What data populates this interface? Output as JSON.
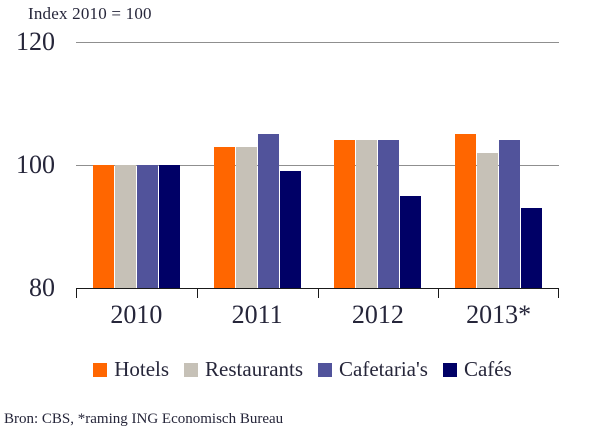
{
  "chart_data": {
    "type": "bar",
    "title": "Index 2010 = 100",
    "categories": [
      "2010",
      "2011",
      "2012",
      "2013*"
    ],
    "series": [
      {
        "name": "Hotels",
        "color": "#FF6600",
        "values": [
          100,
          103,
          104,
          105
        ]
      },
      {
        "name": "Restaurants",
        "color": "#C6C1B7",
        "values": [
          100,
          103,
          104,
          102
        ]
      },
      {
        "name": "Cafetaria's",
        "color": "#51539B",
        "values": [
          100,
          105,
          104,
          104
        ]
      },
      {
        "name": "Cafés",
        "color": "#000066",
        "values": [
          100,
          99,
          95,
          93
        ]
      }
    ],
    "xlabel": "",
    "ylabel": "",
    "ylim": [
      80,
      120
    ],
    "yticks": [
      120,
      100,
      80
    ],
    "grid": "horizontal gridlines at 100 and 120",
    "legend_position": "bottom"
  },
  "source_note": "Bron: CBS, *raming ING Economisch Bureau",
  "colors": {
    "background": "#ffffff",
    "axis": "#1a1a1a",
    "gridline": "#8f8f8f",
    "text": "#26263a"
  }
}
